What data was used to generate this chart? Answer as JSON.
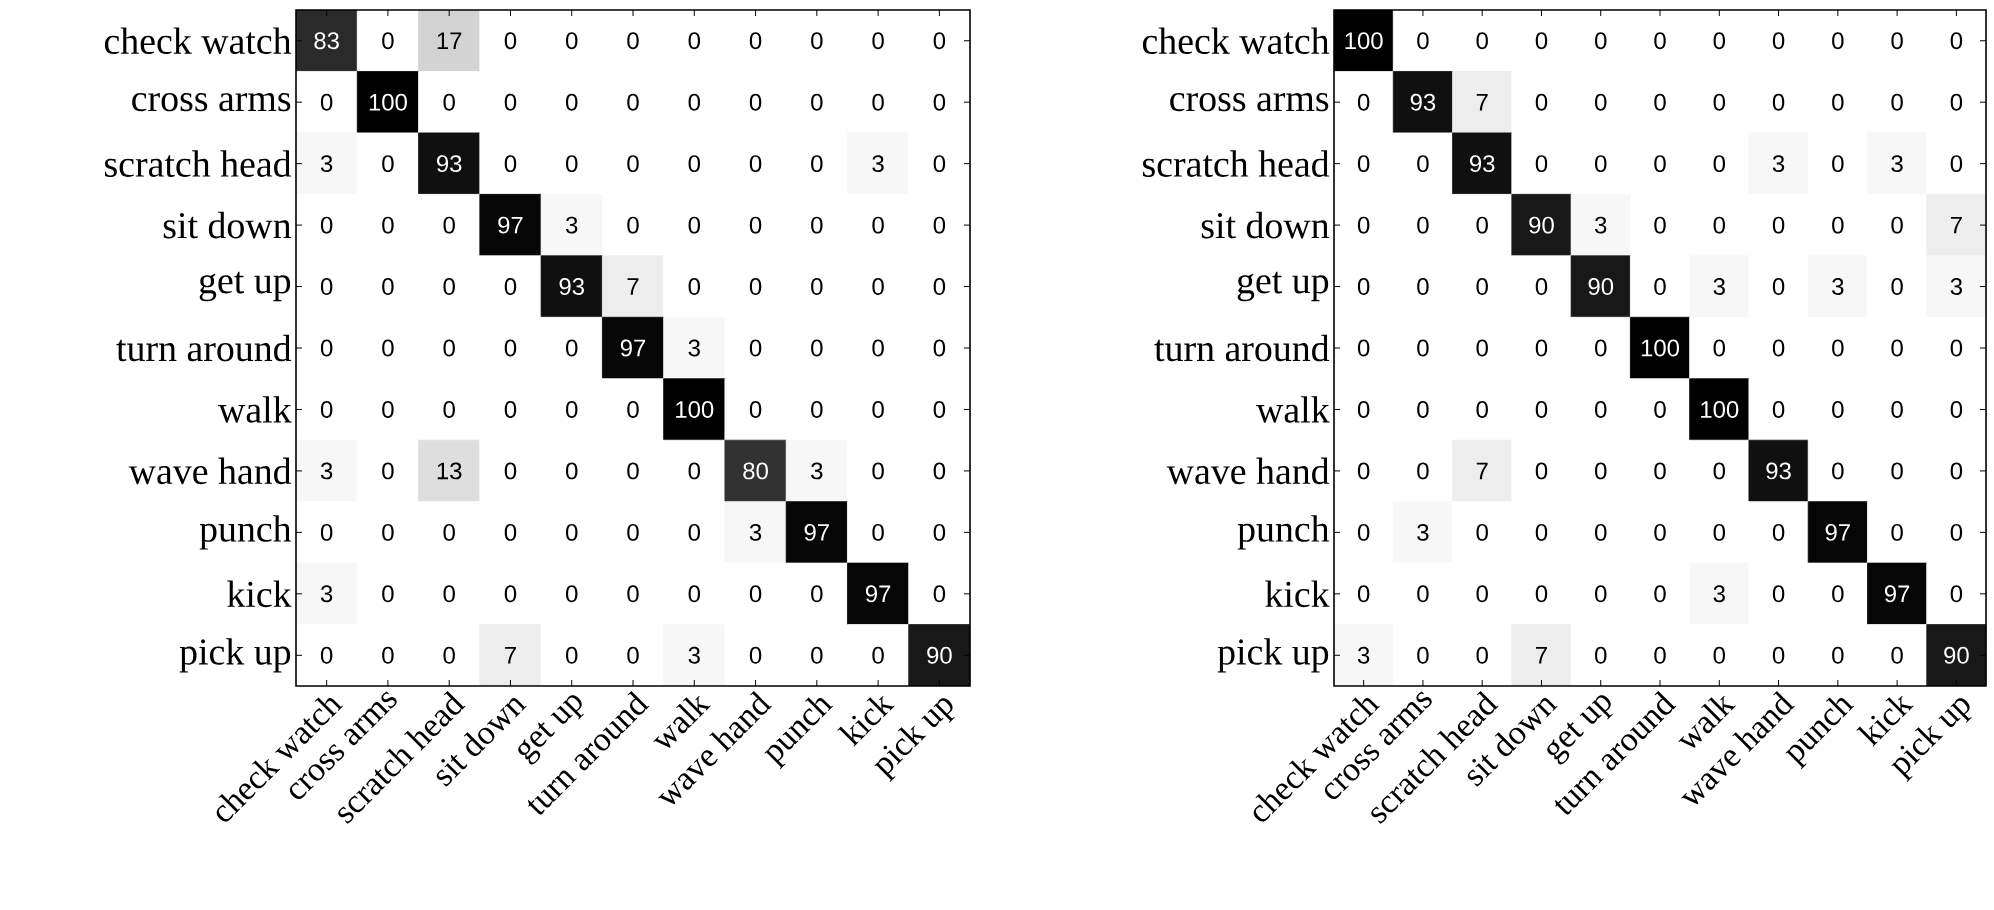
{
  "chart_data": [
    {
      "type": "heatmap",
      "data_labels": true,
      "categories": [
        "check watch",
        "cross arms",
        "scratch head",
        "sit down",
        "get up",
        "turn around",
        "walk",
        "wave hand",
        "punch",
        "kick",
        "pick up"
      ],
      "y_categories": [
        "check watch",
        "cross arms",
        "scratch head",
        "sit down",
        "get up",
        "turn around",
        "walk",
        "wave hand",
        "punch",
        "kick",
        "pick up"
      ],
      "cells": [
        [
          83,
          0,
          17,
          0,
          0,
          0,
          0,
          0,
          0,
          0,
          0
        ],
        [
          0,
          100,
          0,
          0,
          0,
          0,
          0,
          0,
          0,
          0,
          0
        ],
        [
          3,
          0,
          93,
          0,
          0,
          0,
          0,
          0,
          0,
          3,
          0
        ],
        [
          0,
          0,
          0,
          97,
          3,
          0,
          0,
          0,
          0,
          0,
          0
        ],
        [
          0,
          0,
          0,
          0,
          93,
          7,
          0,
          0,
          0,
          0,
          0
        ],
        [
          0,
          0,
          0,
          0,
          0,
          97,
          3,
          0,
          0,
          0,
          0
        ],
        [
          0,
          0,
          0,
          0,
          0,
          0,
          100,
          0,
          0,
          0,
          0
        ],
        [
          3,
          0,
          13,
          0,
          0,
          0,
          0,
          80,
          3,
          0,
          0
        ],
        [
          0,
          0,
          0,
          0,
          0,
          0,
          0,
          3,
          97,
          0,
          0
        ],
        [
          3,
          0,
          0,
          0,
          0,
          0,
          0,
          0,
          0,
          97,
          0
        ],
        [
          0,
          0,
          0,
          7,
          0,
          0,
          3,
          0,
          0,
          0,
          90
        ]
      ]
    },
    {
      "type": "heatmap",
      "data_labels": true,
      "categories": [
        "check watch",
        "cross arms",
        "scratch head",
        "sit down",
        "get up",
        "turn around",
        "walk",
        "wave hand",
        "punch",
        "kick",
        "pick up"
      ],
      "y_categories": [
        "check watch",
        "cross arms",
        "scratch head",
        "sit down",
        "get up",
        "turn around",
        "walk",
        "wave hand",
        "punch",
        "kick",
        "pick up"
      ],
      "cells": [
        [
          100,
          0,
          0,
          0,
          0,
          0,
          0,
          0,
          0,
          0,
          0
        ],
        [
          0,
          93,
          7,
          0,
          0,
          0,
          0,
          0,
          0,
          0,
          0
        ],
        [
          0,
          0,
          93,
          0,
          0,
          0,
          0,
          3,
          0,
          3,
          0
        ],
        [
          0,
          0,
          0,
          90,
          3,
          0,
          0,
          0,
          0,
          0,
          7
        ],
        [
          0,
          0,
          0,
          0,
          90,
          0,
          3,
          0,
          3,
          0,
          3
        ],
        [
          0,
          0,
          0,
          0,
          0,
          100,
          0,
          0,
          0,
          0,
          0
        ],
        [
          0,
          0,
          0,
          0,
          0,
          0,
          100,
          0,
          0,
          0,
          0
        ],
        [
          0,
          0,
          7,
          0,
          0,
          0,
          0,
          93,
          0,
          0,
          0
        ],
        [
          0,
          3,
          0,
          0,
          0,
          0,
          0,
          0,
          97,
          0,
          0
        ],
        [
          0,
          0,
          0,
          0,
          0,
          0,
          3,
          0,
          0,
          97,
          0
        ],
        [
          3,
          0,
          0,
          7,
          0,
          0,
          0,
          0,
          0,
          0,
          90
        ]
      ]
    }
  ]
}
